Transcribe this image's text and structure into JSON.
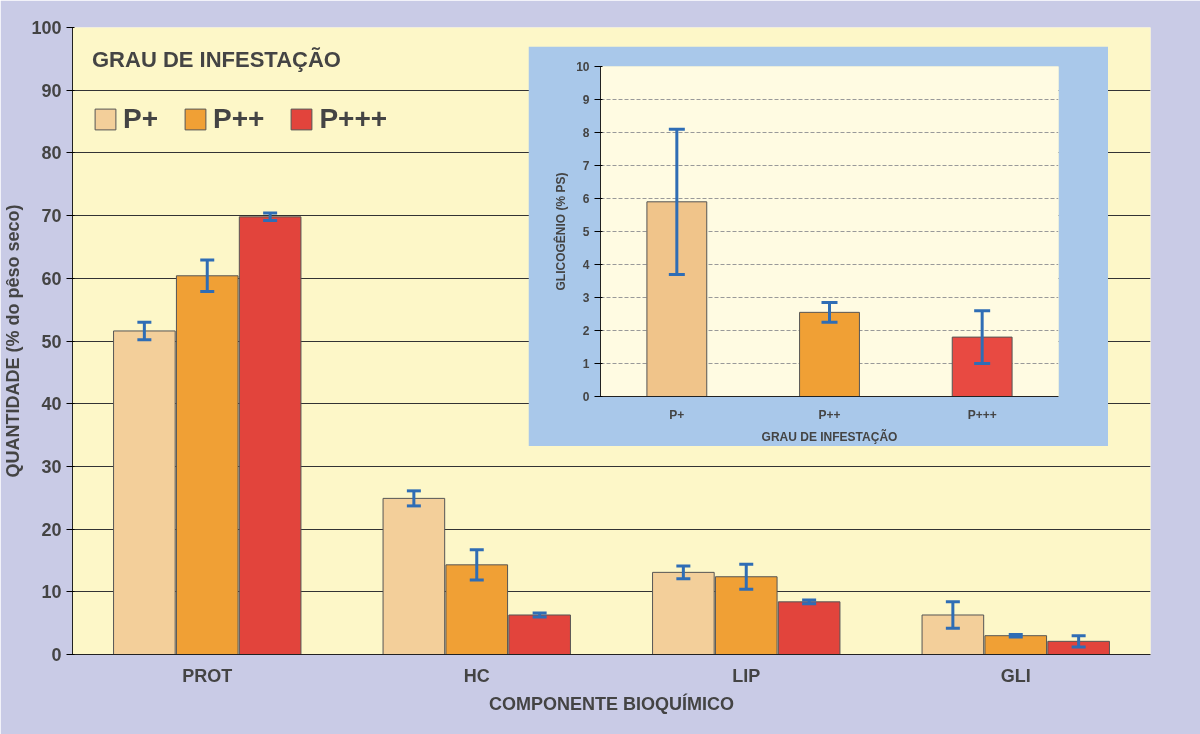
{
  "chart_data": [
    {
      "type": "bar",
      "legend_title": "GRAU DE INFESTAÇÃO",
      "xlabel": "COMPONENTE BIOQUÍMICO",
      "ylabel": "QUANTIDADE (% do pêso seco)",
      "categories": [
        "PROT",
        "HC",
        "LIP",
        "GLI"
      ],
      "series": [
        {
          "name": "P+",
          "color": "#f3cf9a",
          "values": [
            51.6,
            24.9,
            13.1,
            6.3
          ],
          "errors": [
            1.4,
            1.2,
            1.0,
            2.1
          ]
        },
        {
          "name": "P++",
          "color": "#f0a035",
          "values": [
            60.4,
            14.3,
            12.4,
            3.0
          ],
          "errors": [
            2.5,
            2.4,
            2.0,
            0.2
          ]
        },
        {
          "name": "P+++",
          "color": "#e2443c",
          "values": [
            69.8,
            6.3,
            8.4,
            2.1
          ],
          "errors": [
            0.6,
            0.3,
            0.3,
            0.9
          ]
        }
      ],
      "ylim": [
        0,
        100
      ],
      "yticks": [
        0,
        10,
        20,
        30,
        40,
        50,
        60,
        70,
        80,
        90,
        100
      ],
      "grid": "y",
      "legend": "top left"
    },
    {
      "type": "bar",
      "xlabel": "GRAU DE INFESTAÇÃO",
      "ylabel": "GLICOGÊNIO (% PS)",
      "categories": [
        "P+",
        "P++",
        "P+++"
      ],
      "values": [
        5.9,
        2.55,
        1.8
      ],
      "errors": [
        2.2,
        0.3,
        0.8
      ],
      "colors": [
        "#f0c48a",
        "#f0a035",
        "#e84a42"
      ],
      "ylim": [
        0,
        10
      ],
      "yticks": [
        0,
        1,
        2,
        3,
        4,
        5,
        6,
        7,
        8,
        9,
        10
      ],
      "grid": "y"
    }
  ]
}
